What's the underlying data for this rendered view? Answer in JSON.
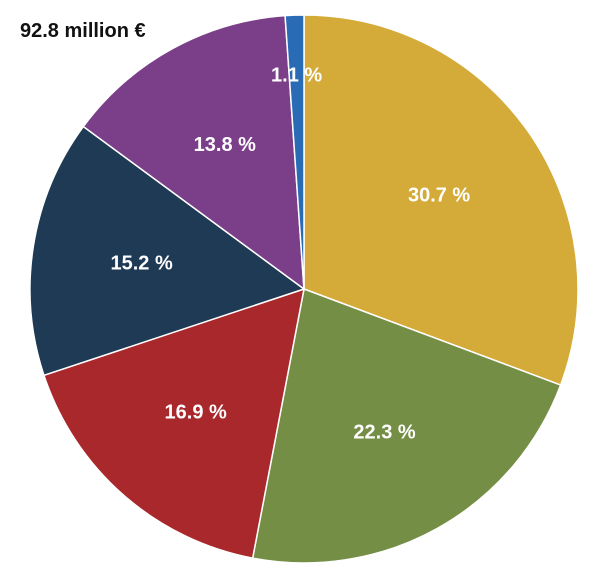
{
  "chart_data": {
    "type": "pie",
    "title": "92.8 million €",
    "start_angle_deg": 0,
    "direction": "clockwise",
    "slices": [
      {
        "value": 30.7,
        "label": "30.7 %",
        "color": "#D4AA38"
      },
      {
        "value": 22.3,
        "label": "22.3 %",
        "color": "#748E45"
      },
      {
        "value": 16.9,
        "label": "16.9 %",
        "color": "#A8282C"
      },
      {
        "value": 15.2,
        "label": "15.2 %",
        "color": "#1E3A54"
      },
      {
        "value": 13.8,
        "label": "13.8 %",
        "color": "#7B3F8A"
      },
      {
        "value": 1.1,
        "label": "1.1 %",
        "color": "#2A6BB5"
      }
    ]
  }
}
